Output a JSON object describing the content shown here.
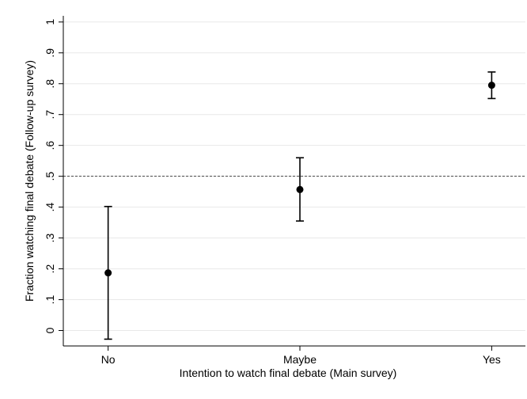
{
  "chart_data": {
    "type": "scatter",
    "title": "",
    "xlabel": "Intention to watch final debate (Main survey)",
    "ylabel": "Fraction watching final debate (Follow-up survey)",
    "categories": [
      "No",
      "Maybe",
      "Yes"
    ],
    "values": [
      0.187,
      0.457,
      0.795
    ],
    "ci_low": [
      -0.028,
      0.355,
      0.752
    ],
    "ci_high": [
      0.402,
      0.56,
      0.838
    ],
    "ylim": [
      -0.05,
      1.02
    ],
    "yticks": [
      0,
      0.1,
      0.2,
      0.3,
      0.4,
      0.5,
      0.6,
      0.7,
      0.8,
      0.9,
      1
    ],
    "ytick_labels": [
      "0",
      ".1",
      ".2",
      ".3",
      ".4",
      ".5",
      ".6",
      ".7",
      ".8",
      ".9",
      "1"
    ],
    "reference_line": 0.5,
    "grid": true,
    "colors": {
      "marker": "#000000",
      "grid": "#e8e8e8",
      "axis": "#000000",
      "reference": "#444444"
    }
  }
}
